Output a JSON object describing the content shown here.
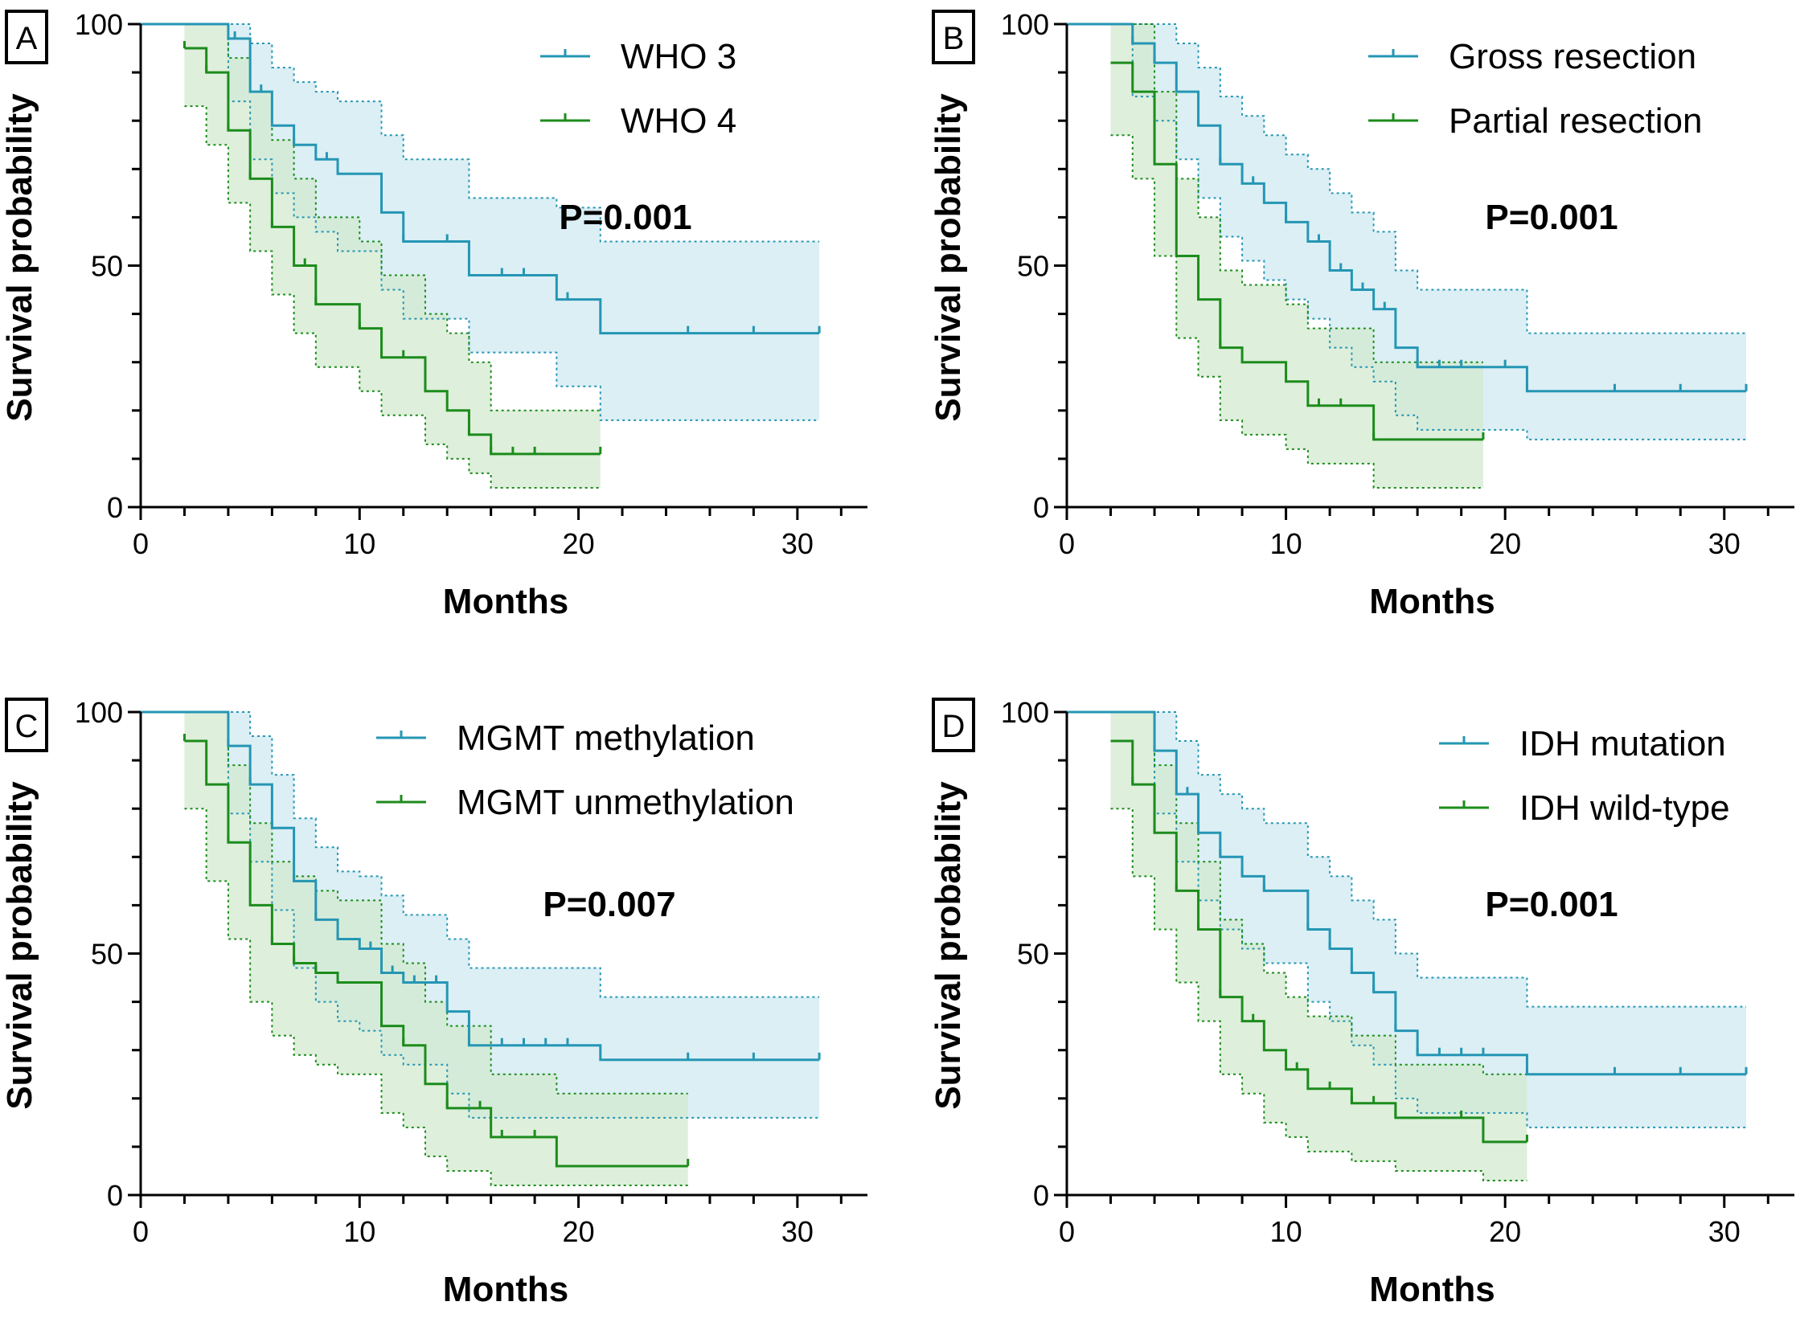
{
  "colors": {
    "who3_line": "#2596b4",
    "who3_band": "#d6eef4",
    "who4_line": "#1c8c1c",
    "who4_band": "#d6ebd3",
    "axis": "#000000"
  },
  "chart_data": [
    {
      "id": "A",
      "type": "line",
      "subtype": "kaplan-meier step",
      "panel_label": "A",
      "xlabel": "Months",
      "ylabel": "Survival probability",
      "xlim": [
        0,
        33
      ],
      "ylim": [
        0,
        100
      ],
      "xticks": [
        "0",
        "10",
        "20",
        "30"
      ],
      "yticks": [
        "0",
        "50",
        "100"
      ],
      "annotation": "P=0.001",
      "series": [
        {
          "name": "WHO 3",
          "color": "#2596b4",
          "x": [
            0,
            4,
            5,
            6,
            7,
            8,
            9,
            11,
            12,
            15,
            19,
            21,
            31
          ],
          "y": [
            100,
            97,
            86,
            79,
            75,
            72,
            69,
            61,
            55,
            48,
            43,
            36,
            36
          ],
          "upper": [
            100,
            100,
            96,
            91,
            88,
            86,
            84,
            77,
            72,
            64,
            62,
            55,
            55
          ],
          "lower": [
            100,
            84,
            72,
            65,
            60,
            57,
            53,
            45,
            39,
            32,
            25,
            18,
            18
          ],
          "censor_x": [
            4.3,
            5.5,
            7,
            8.5,
            11,
            12,
            14,
            16.5,
            17.5,
            19.5,
            25,
            28,
            31
          ]
        },
        {
          "name": "WHO 4",
          "color": "#1c8c1c",
          "x": [
            2,
            3,
            4,
            5,
            6,
            7,
            8,
            10,
            11,
            13,
            14,
            15,
            16,
            21
          ],
          "y": [
            95,
            90,
            78,
            68,
            58,
            50,
            42,
            37,
            31,
            24,
            20,
            15,
            11,
            11
          ],
          "upper": [
            100,
            100,
            93,
            86,
            76,
            68,
            60,
            55,
            48,
            40,
            36,
            30,
            20,
            20
          ],
          "lower": [
            83,
            75,
            63,
            53,
            44,
            36,
            29,
            24,
            19,
            13,
            10,
            7,
            4,
            4
          ],
          "censor_x": [
            2,
            3,
            4,
            5,
            6,
            7.5,
            8,
            10,
            12,
            13,
            15,
            16,
            17,
            18,
            21
          ]
        }
      ],
      "legend": [
        "WHO 3",
        "WHO 4"
      ]
    },
    {
      "id": "B",
      "type": "line",
      "subtype": "kaplan-meier step",
      "panel_label": "B",
      "xlabel": "Months",
      "ylabel": "Survival probability",
      "xlim": [
        0,
        33
      ],
      "ylim": [
        0,
        100
      ],
      "xticks": [
        "0",
        "10",
        "20",
        "30"
      ],
      "yticks": [
        "0",
        "50",
        "100"
      ],
      "annotation": "P=0.001",
      "series": [
        {
          "name": "Gross resection",
          "color": "#2596b4",
          "x": [
            0,
            3,
            4,
            5,
            6,
            7,
            8,
            9,
            10,
            11,
            12,
            13,
            14,
            15,
            16,
            21,
            31
          ],
          "y": [
            100,
            96,
            92,
            86,
            79,
            71,
            67,
            63,
            59,
            55,
            49,
            45,
            41,
            33,
            29,
            24,
            24
          ],
          "upper": [
            100,
            100,
            100,
            96,
            91,
            85,
            81,
            77,
            73,
            70,
            65,
            61,
            57,
            49,
            45,
            36,
            36
          ],
          "lower": [
            100,
            85,
            80,
            72,
            64,
            56,
            51,
            47,
            43,
            39,
            33,
            29,
            26,
            19,
            16,
            14,
            14
          ],
          "censor_x": [
            3,
            4,
            6,
            7,
            8.5,
            10,
            11.5,
            12.5,
            13.5,
            14.5,
            16,
            17,
            18,
            20,
            21,
            25,
            28,
            31
          ]
        },
        {
          "name": "Partial resection",
          "color": "#1c8c1c",
          "x": [
            2,
            3,
            4,
            5,
            6,
            7,
            8,
            10,
            11,
            14,
            19
          ],
          "y": [
            92,
            86,
            71,
            52,
            43,
            33,
            30,
            26,
            21,
            14,
            14
          ],
          "upper": [
            100,
            100,
            86,
            68,
            60,
            49,
            46,
            42,
            37,
            30,
            30
          ],
          "lower": [
            77,
            68,
            52,
            35,
            27,
            18,
            15,
            12,
            9,
            4,
            4
          ],
          "censor_x": [
            7,
            11.5,
            12.5,
            14,
            19
          ]
        }
      ],
      "legend": [
        "Gross resection",
        "Partial resection"
      ]
    },
    {
      "id": "C",
      "type": "line",
      "subtype": "kaplan-meier step",
      "panel_label": "C",
      "xlabel": "Months",
      "ylabel": "Survival probability",
      "xlim": [
        0,
        33
      ],
      "ylim": [
        0,
        100
      ],
      "xticks": [
        "0",
        "10",
        "20",
        "30"
      ],
      "yticks": [
        "0",
        "50",
        "100"
      ],
      "annotation": "P=0.007",
      "series": [
        {
          "name": "MGMT methylation",
          "color": "#2596b4",
          "x": [
            0,
            4,
            5,
            6,
            7,
            8,
            9,
            10,
            11,
            12,
            14,
            15,
            21,
            31
          ],
          "y": [
            100,
            93,
            85,
            76,
            65,
            57,
            53,
            51,
            46,
            44,
            38,
            31,
            28,
            28
          ],
          "upper": [
            100,
            100,
            95,
            87,
            78,
            72,
            67,
            66,
            62,
            58,
            53,
            47,
            41,
            41
          ],
          "lower": [
            100,
            79,
            69,
            59,
            47,
            40,
            36,
            34,
            29,
            27,
            21,
            16,
            16,
            16
          ],
          "censor_x": [
            4,
            5,
            6,
            7,
            8,
            9,
            10.5,
            11.5,
            12.5,
            13.5,
            15,
            16.5,
            17.5,
            18.5,
            19.5,
            25,
            28,
            31
          ]
        },
        {
          "name": "MGMT unmethylation",
          "color": "#1c8c1c",
          "x": [
            2,
            3,
            4,
            5,
            6,
            7,
            8,
            9,
            11,
            12,
            13,
            14,
            16,
            19,
            25
          ],
          "y": [
            94,
            85,
            73,
            60,
            52,
            48,
            46,
            44,
            35,
            31,
            23,
            18,
            12,
            6,
            6
          ],
          "upper": [
            100,
            100,
            89,
            77,
            69,
            66,
            63,
            61,
            52,
            48,
            40,
            35,
            25,
            21,
            21
          ],
          "lower": [
            80,
            65,
            53,
            40,
            33,
            29,
            27,
            25,
            17,
            14,
            8,
            5,
            2,
            2,
            2
          ],
          "censor_x": [
            2,
            4,
            6,
            7,
            8,
            11,
            12,
            13,
            14,
            15.5,
            16.5,
            18,
            25
          ]
        }
      ],
      "legend": [
        "MGMT methylation",
        "MGMT unmethylation"
      ]
    },
    {
      "id": "D",
      "type": "line",
      "subtype": "kaplan-meier step",
      "panel_label": "D",
      "xlabel": "Months",
      "ylabel": "Survival probability",
      "xlim": [
        0,
        33
      ],
      "ylim": [
        0,
        100
      ],
      "xticks": [
        "0",
        "10",
        "20",
        "30"
      ],
      "yticks": [
        "0",
        "50",
        "100"
      ],
      "annotation": "P=0.001",
      "series": [
        {
          "name": "IDH mutation",
          "color": "#2596b4",
          "x": [
            0,
            4,
            5,
            6,
            7,
            8,
            9,
            11,
            12,
            13,
            14,
            15,
            16,
            21,
            31
          ],
          "y": [
            100,
            92,
            83,
            75,
            70,
            66,
            63,
            55,
            51,
            46,
            42,
            34,
            29,
            25,
            25
          ],
          "upper": [
            100,
            100,
            94,
            87,
            83,
            80,
            77,
            70,
            66,
            61,
            57,
            50,
            45,
            39,
            39
          ],
          "lower": [
            100,
            79,
            69,
            61,
            55,
            51,
            48,
            40,
            36,
            31,
            27,
            20,
            17,
            14,
            14
          ],
          "censor_x": [
            4,
            5.5,
            6,
            7,
            8,
            9,
            11,
            12,
            13,
            14,
            15,
            16,
            17,
            18,
            19,
            21,
            25,
            28,
            31
          ]
        },
        {
          "name": "IDH wild-type",
          "color": "#1c8c1c",
          "x": [
            2,
            3,
            4,
            5,
            6,
            7,
            8,
            9,
            10,
            11,
            13,
            15,
            19,
            21
          ],
          "y": [
            94,
            85,
            75,
            63,
            55,
            41,
            36,
            30,
            26,
            22,
            19,
            16,
            11,
            11
          ],
          "upper": [
            100,
            100,
            89,
            77,
            69,
            57,
            52,
            46,
            41,
            37,
            33,
            27,
            25,
            25
          ],
          "lower": [
            80,
            66,
            55,
            44,
            36,
            25,
            21,
            15,
            12,
            9,
            7,
            5,
            3,
            3
          ],
          "censor_x": [
            3,
            4,
            5,
            6,
            7,
            8.5,
            10.5,
            12,
            13,
            14,
            15,
            18,
            21
          ]
        }
      ],
      "legend": [
        "IDH mutation",
        "IDH wild-type"
      ]
    }
  ]
}
